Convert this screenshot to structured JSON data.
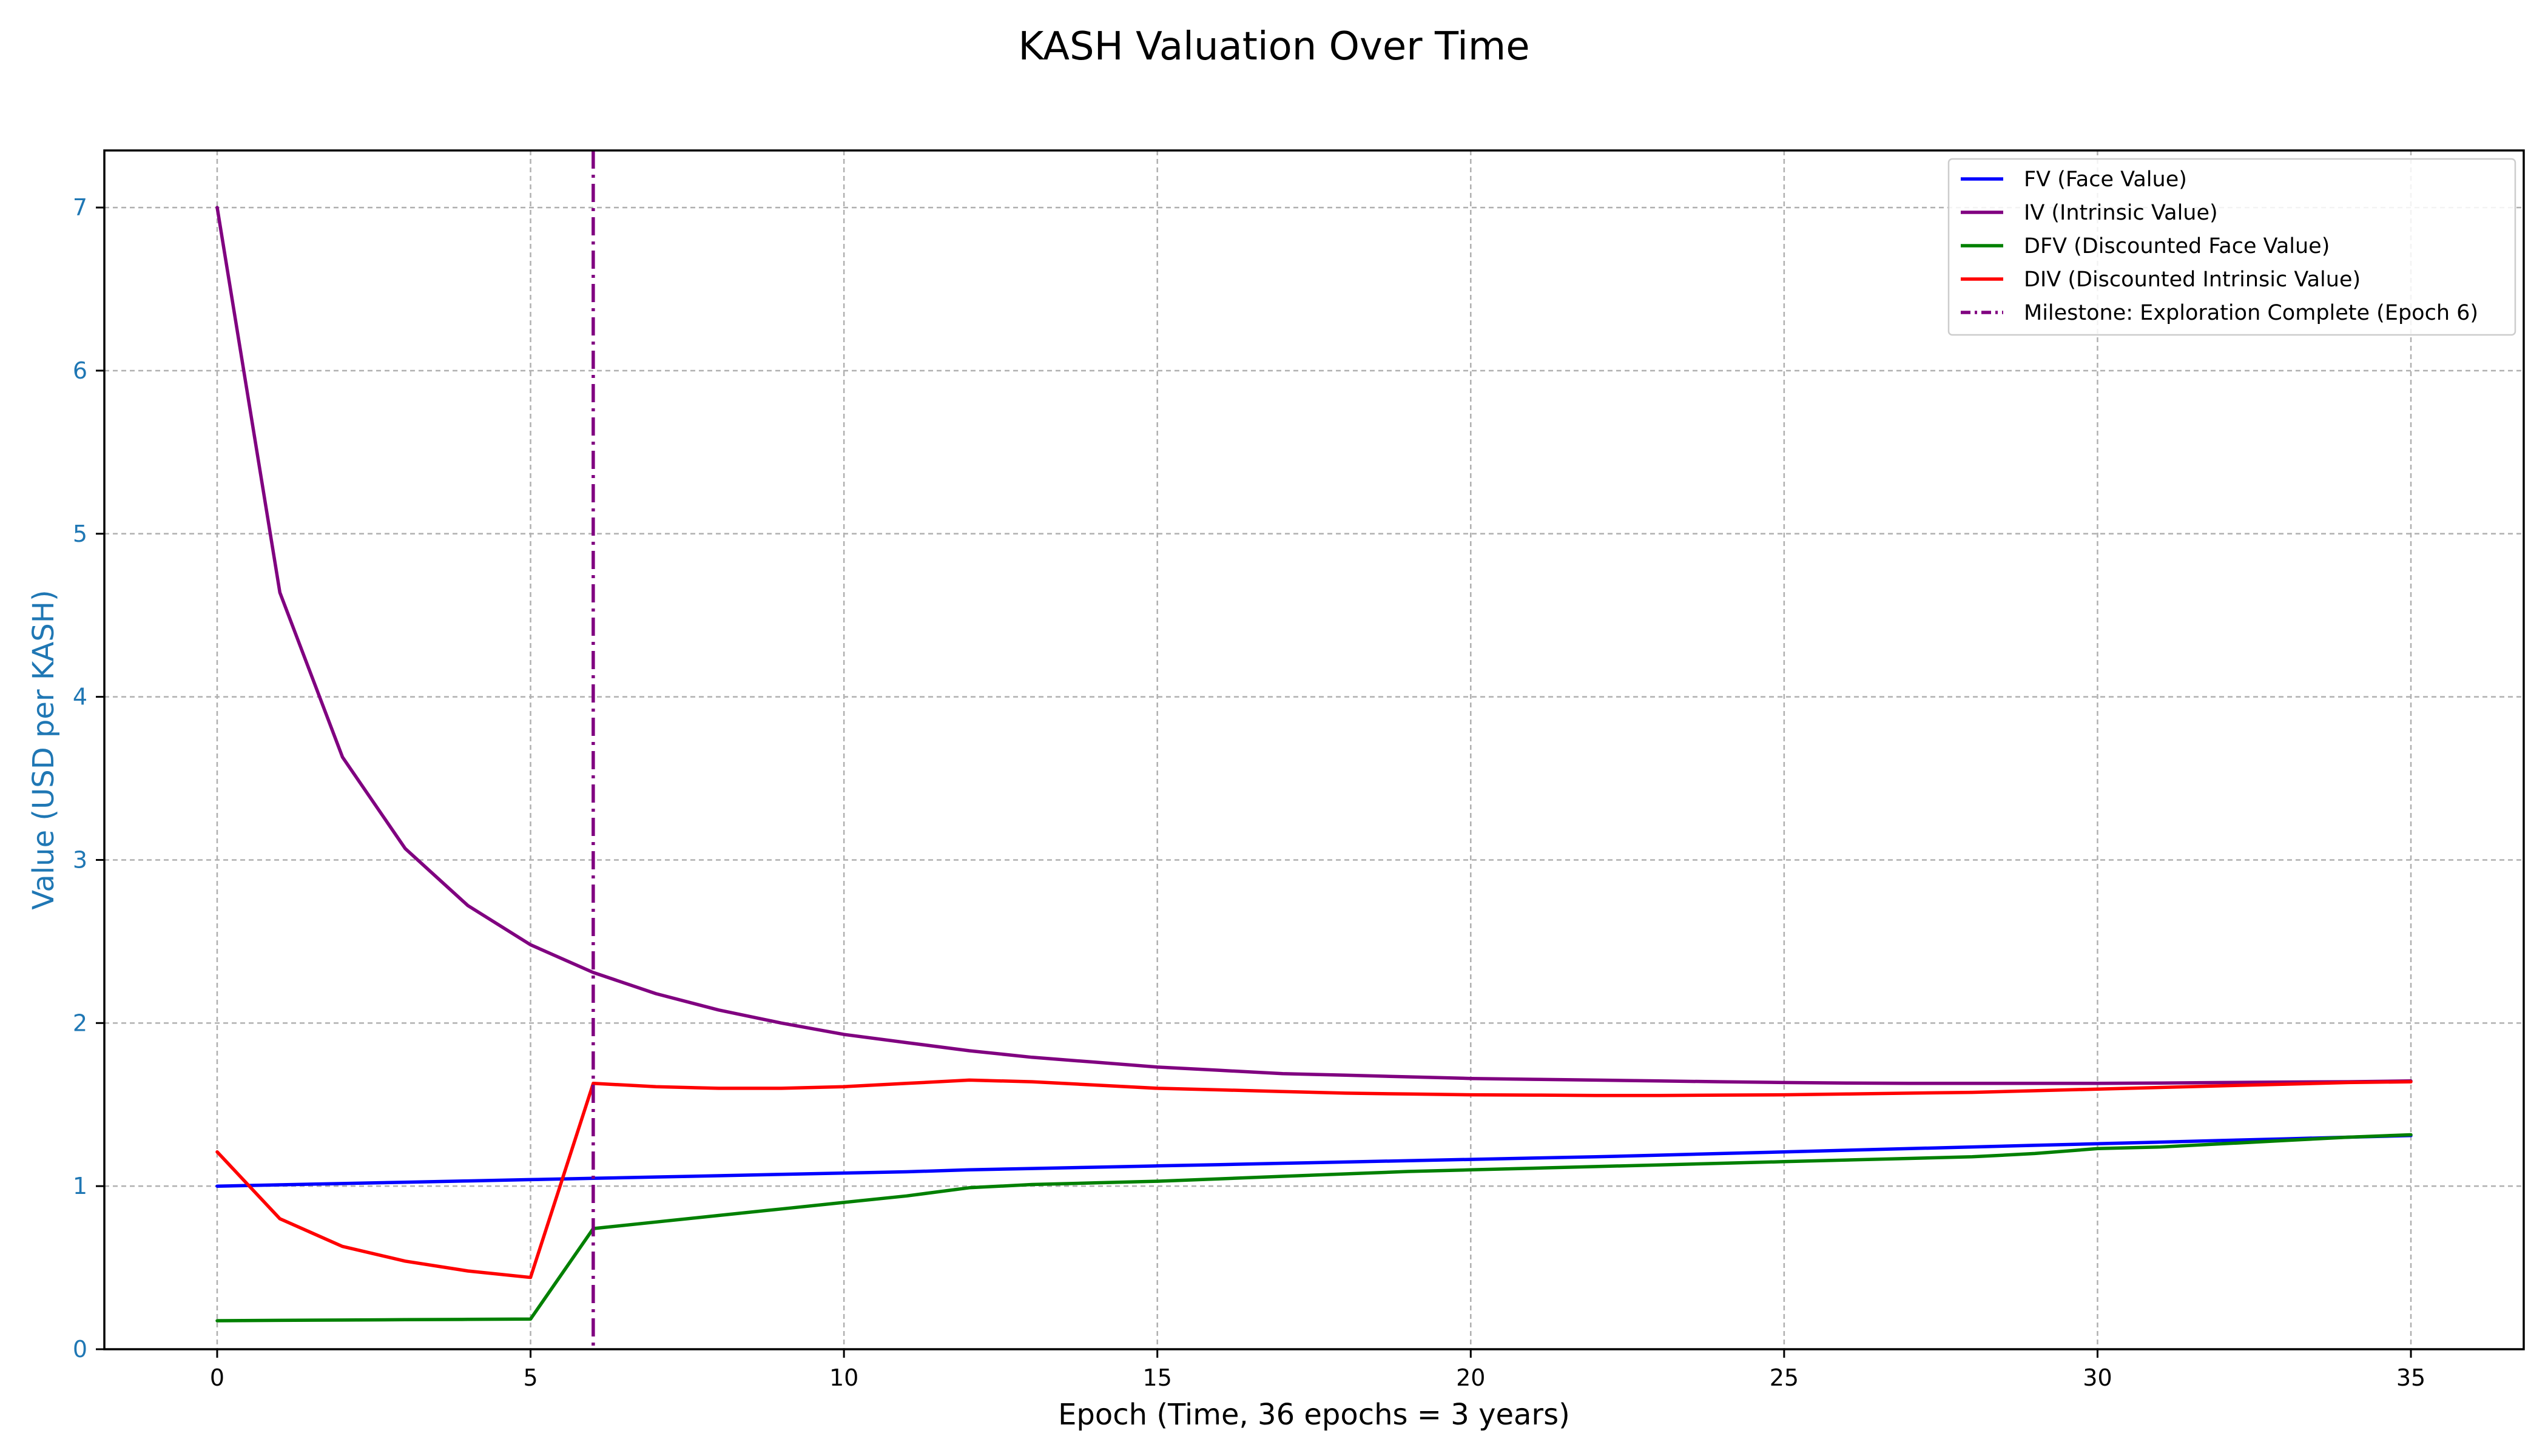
{
  "chart_data": {
    "type": "line",
    "title": "KASH Valuation Over Time",
    "xlabel": "Epoch (Time, 36 epochs = 3 years)",
    "ylabel": "Value (USD per KASH)",
    "xlim": [
      -1.8,
      36.8
    ],
    "ylim": [
      0,
      7.35
    ],
    "xticks": [
      0,
      5,
      10,
      15,
      20,
      25,
      30,
      35
    ],
    "yticks": [
      0,
      1,
      2,
      3,
      4,
      5,
      6,
      7
    ],
    "grid": true,
    "legend_position": "top-right",
    "x": [
      0,
      1,
      2,
      3,
      4,
      5,
      6,
      7,
      8,
      9,
      10,
      11,
      12,
      13,
      14,
      15,
      16,
      17,
      18,
      19,
      20,
      21,
      22,
      23,
      24,
      25,
      26,
      27,
      28,
      29,
      30,
      31,
      32,
      33,
      34,
      35
    ],
    "series": [
      {
        "name": "FV (Face Value)",
        "color": "#0000ff",
        "style": "solid",
        "values": [
          1.0,
          1.008,
          1.016,
          1.024,
          1.032,
          1.04,
          1.048,
          1.056,
          1.064,
          1.072,
          1.08,
          1.088,
          1.1,
          1.108,
          1.116,
          1.124,
          1.132,
          1.14,
          1.148,
          1.156,
          1.164,
          1.172,
          1.18,
          1.19,
          1.2,
          1.21,
          1.22,
          1.23,
          1.24,
          1.25,
          1.26,
          1.27,
          1.28,
          1.29,
          1.3,
          1.31
        ]
      },
      {
        "name": "IV (Intrinsic Value)",
        "color": "#800080",
        "style": "solid",
        "values": [
          7.0,
          4.64,
          3.63,
          3.07,
          2.72,
          2.48,
          2.31,
          2.18,
          2.08,
          2.0,
          1.93,
          1.88,
          1.83,
          1.79,
          1.76,
          1.73,
          1.71,
          1.69,
          1.68,
          1.67,
          1.66,
          1.655,
          1.65,
          1.645,
          1.64,
          1.635,
          1.632,
          1.63,
          1.63,
          1.63,
          1.63,
          1.632,
          1.635,
          1.638,
          1.64,
          1.645
        ]
      },
      {
        "name": "DFV (Discounted Face Value)",
        "color": "#008000",
        "style": "solid",
        "values": [
          0.175,
          0.177,
          0.179,
          0.181,
          0.183,
          0.185,
          0.74,
          0.78,
          0.82,
          0.86,
          0.9,
          0.94,
          0.99,
          1.01,
          1.02,
          1.03,
          1.045,
          1.06,
          1.075,
          1.09,
          1.1,
          1.11,
          1.12,
          1.13,
          1.14,
          1.15,
          1.16,
          1.17,
          1.18,
          1.2,
          1.23,
          1.24,
          1.26,
          1.28,
          1.3,
          1.315
        ]
      },
      {
        "name": "DIV (Discounted Intrinsic Value)",
        "color": "#ff0000",
        "style": "solid",
        "values": [
          1.21,
          0.8,
          0.63,
          0.54,
          0.48,
          0.44,
          1.63,
          1.61,
          1.6,
          1.6,
          1.61,
          1.63,
          1.65,
          1.64,
          1.62,
          1.6,
          1.59,
          1.58,
          1.57,
          1.565,
          1.56,
          1.558,
          1.556,
          1.556,
          1.558,
          1.56,
          1.565,
          1.57,
          1.575,
          1.585,
          1.595,
          1.605,
          1.615,
          1.625,
          1.635,
          1.64
        ]
      }
    ],
    "vlines": [
      {
        "name": "Milestone: Exploration Complete (Epoch 6)",
        "x": 6,
        "color": "#800080",
        "style": "dashdot"
      }
    ]
  }
}
